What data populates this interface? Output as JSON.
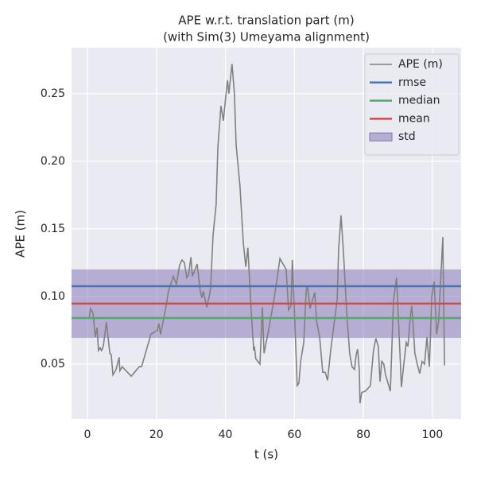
{
  "chart_data": {
    "type": "line",
    "title": [
      "APE w.r.t. translation part (m)",
      "(with Sim(3) Umeyama alignment)"
    ],
    "x_label": "t (s)",
    "y_label": "APE (m)",
    "xlim": [
      -4.6,
      108.3
    ],
    "ylim": [
      0.0094,
      0.284
    ],
    "xticks": [
      0,
      20,
      40,
      60,
      80,
      100
    ],
    "yticks": [
      0.05,
      {
        "value": 0.1,
        "label": "0.10"
      },
      0.15,
      {
        "value": 0.2,
        "label": "0.20"
      },
      0.25
    ],
    "grid": true,
    "legend": "upper right",
    "series": [
      {
        "name": "APE (m)",
        "color": "#808080",
        "x": [
          0.5,
          0.9,
          1.6,
          2.3,
          2.8,
          3.2,
          3.7,
          4.1,
          4.6,
          5.5,
          6.5,
          6.9,
          7.4,
          8.3,
          9.2,
          9.4,
          10.1,
          12.7,
          15.0,
          15.7,
          18.4,
          20.3,
          20.7,
          21.2,
          22.6,
          23.5,
          24.9,
          25.8,
          26.7,
          27.4,
          28.1,
          28.8,
          29.3,
          30.0,
          30.4,
          30.9,
          31.8,
          32.7,
          33.2,
          33.6,
          34.6,
          35.3,
          35.7,
          36.4,
          37.3,
          37.8,
          38.7,
          39.4,
          40.1,
          40.6,
          41.0,
          41.9,
          42.6,
          43.1,
          44.2,
          45.2,
          45.9,
          46.5,
          47.5,
          48.2,
          48.4,
          48.8,
          50.0,
          50.7,
          51.2,
          52.5,
          54.1,
          55.8,
          57.6,
          58.3,
          59.0,
          59.4,
          60.1,
          60.8,
          61.3,
          61.8,
          62.7,
          63.4,
          63.8,
          64.5,
          65.9,
          66.4,
          67.3,
          68.2,
          68.9,
          69.6,
          70.5,
          72.4,
          72.8,
          73.5,
          74.2,
          75.1,
          76.0,
          76.7,
          77.4,
          77.9,
          78.3,
          78.8,
          79.0,
          79.5,
          80.6,
          82.0,
          82.9,
          83.6,
          84.3,
          84.8,
          85.3,
          85.9,
          86.4,
          87.1,
          87.8,
          88.7,
          89.6,
          90.3,
          91.0,
          91.7,
          92.4,
          92.9,
          93.5,
          94.0,
          94.5,
          94.9,
          95.6,
          96.3,
          97.0,
          97.7,
          98.4,
          99.1,
          99.8,
          100.5,
          101.2,
          101.8,
          103.0,
          103.5
        ],
        "values": [
          0.084,
          0.091,
          0.088,
          0.07,
          0.077,
          0.06,
          0.062,
          0.06,
          0.063,
          0.081,
          0.058,
          0.057,
          0.042,
          0.046,
          0.055,
          0.045,
          0.048,
          0.041,
          0.048,
          0.048,
          0.072,
          0.075,
          0.08,
          0.072,
          0.09,
          0.104,
          0.115,
          0.109,
          0.123,
          0.127,
          0.125,
          0.114,
          0.116,
          0.129,
          0.115,
          0.118,
          0.124,
          0.104,
          0.099,
          0.104,
          0.092,
          0.1,
          0.106,
          0.145,
          0.168,
          0.21,
          0.241,
          0.23,
          0.248,
          0.26,
          0.25,
          0.272,
          0.25,
          0.212,
          0.182,
          0.139,
          0.122,
          0.136,
          0.088,
          0.06,
          0.063,
          0.054,
          0.05,
          0.092,
          0.058,
          0.075,
          0.098,
          0.128,
          0.12,
          0.09,
          0.093,
          0.127,
          0.082,
          0.034,
          0.036,
          0.052,
          0.066,
          0.104,
          0.108,
          0.091,
          0.103,
          0.082,
          0.07,
          0.044,
          0.044,
          0.038,
          0.06,
          0.098,
          0.135,
          0.16,
          0.133,
          0.09,
          0.058,
          0.048,
          0.046,
          0.057,
          0.061,
          0.046,
          0.021,
          0.029,
          0.03,
          0.034,
          0.06,
          0.069,
          0.063,
          0.037,
          0.052,
          0.05,
          0.042,
          0.036,
          0.03,
          0.097,
          0.114,
          0.074,
          0.033,
          0.05,
          0.066,
          0.063,
          0.083,
          0.093,
          0.075,
          0.058,
          0.05,
          0.043,
          0.052,
          0.05,
          0.07,
          0.048,
          0.1,
          0.111,
          0.072,
          0.082,
          0.144,
          0.049
        ]
      }
    ],
    "stats": [
      {
        "name": "rmse",
        "color": "#4c72b0",
        "value": 0.1076
      },
      {
        "name": "median",
        "color": "#55a868",
        "value": 0.0841
      },
      {
        "name": "mean",
        "color": "#c44e52",
        "value": 0.0947
      }
    ],
    "std": {
      "name": "std",
      "color": "#8172b2",
      "value": 0.0253
    }
  }
}
